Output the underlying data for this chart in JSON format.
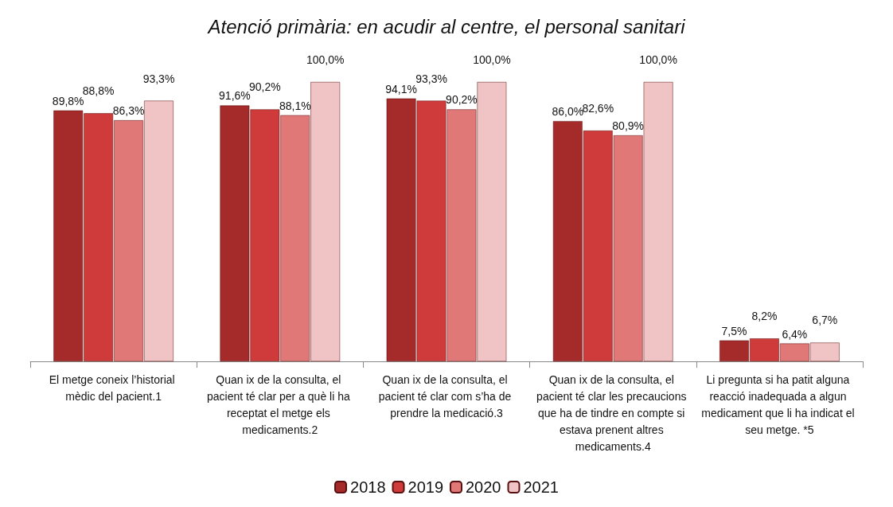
{
  "chart_data": {
    "type": "bar",
    "title": "Atenció primària: en acudir al centre, el personal sanitari",
    "categories": [
      "El metge coneix l’historial mèdic del pacient.1",
      "Quan ix de la consulta, el pacient té clar per a què li ha receptat el metge els medicaments.2",
      "Quan ix de la consulta, el pacient té clar com s’ha de prendre la medicació.3",
      "Quan ix de la consulta, el pacient té clar les precaucions que ha de tindre en compte si estava prenent altres medicaments.4",
      "Li pregunta si ha patit alguna reacció inadequada a algun medicament que li ha indicat el seu metge. *5"
    ],
    "series": [
      {
        "name": "2018",
        "color": "#a52a2a",
        "values": [
          89.8,
          91.6,
          94.1,
          86.0,
          7.5
        ],
        "value_labels": [
          "89,8%",
          "91,6%",
          "94,1%",
          "86,0%",
          "7,5%"
        ]
      },
      {
        "name": "2019",
        "color": "#cf3a3a",
        "values": [
          88.8,
          90.2,
          93.3,
          82.6,
          8.2
        ],
        "value_labels": [
          "88,8%",
          "90,2%",
          "93,3%",
          "82,6%",
          "8,2%"
        ]
      },
      {
        "name": "2020",
        "color": "#e07878",
        "values": [
          86.3,
          88.1,
          90.2,
          80.9,
          6.4
        ],
        "value_labels": [
          "86,3%",
          "88,1%",
          "90,2%",
          "80,9%",
          "6,4%"
        ]
      },
      {
        "name": "2021",
        "color": "#f0c4c4",
        "values": [
          93.3,
          100.0,
          100.0,
          100.0,
          6.7
        ],
        "value_labels": [
          "93,3%",
          "100,0%",
          "100,0%",
          "100,0%",
          "6,7%"
        ]
      }
    ],
    "legend": "bottom"
  }
}
